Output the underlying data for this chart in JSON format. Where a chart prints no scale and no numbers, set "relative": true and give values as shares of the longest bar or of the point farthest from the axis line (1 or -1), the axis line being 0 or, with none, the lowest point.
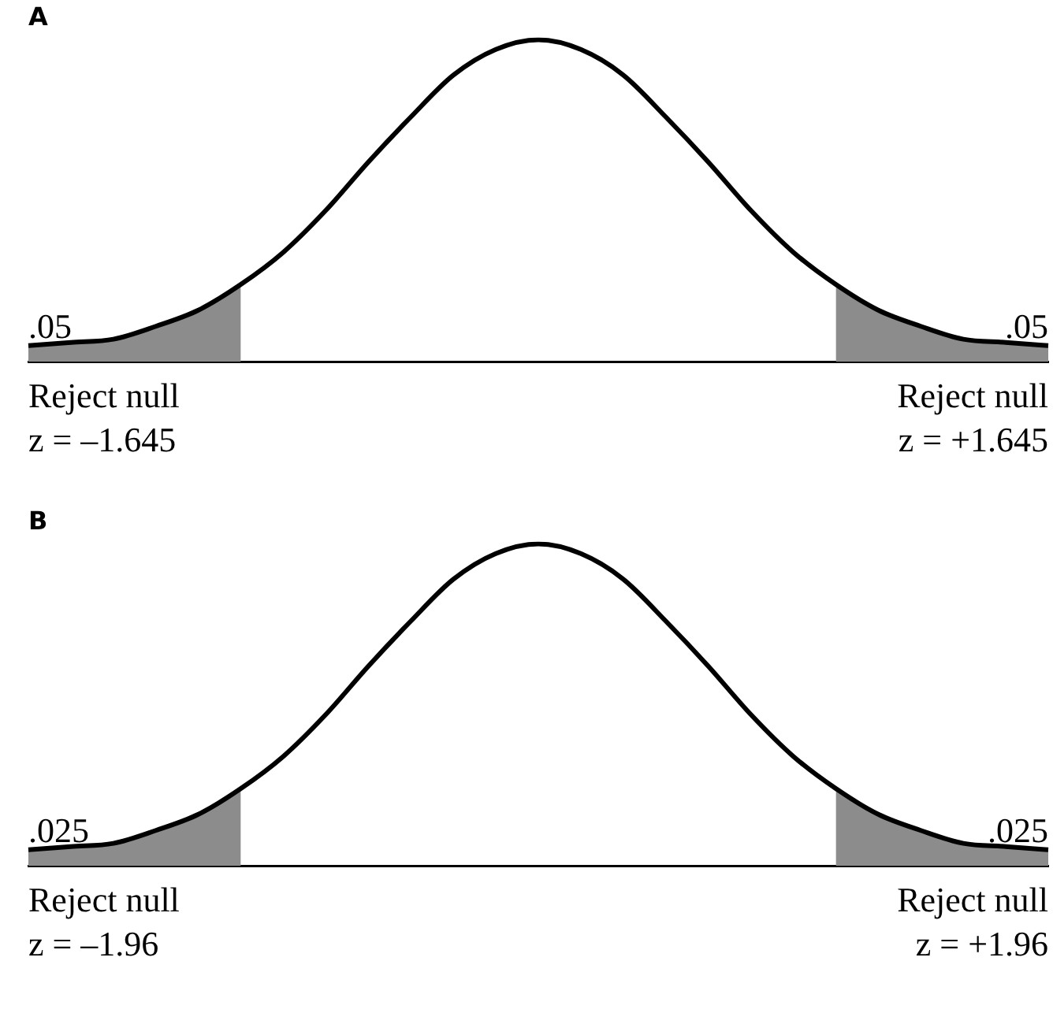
{
  "chart_data": [
    {
      "type": "line",
      "title": "A",
      "relative": true,
      "categories": [
        null,
        null,
        null,
        null,
        null,
        null,
        null,
        null,
        null,
        null,
        null,
        null,
        null,
        null,
        null,
        null,
        null,
        null,
        null,
        null,
        null,
        null,
        null,
        null,
        null
      ],
      "series": [
        {
          "color": "#000000",
          "values": [
            0.05,
            0.06,
            0.07,
            0.11,
            0.16,
            0.24,
            0.34,
            0.47,
            0.62,
            0.76,
            0.89,
            0.97,
            1.0,
            0.97,
            0.89,
            0.76,
            0.62,
            0.47,
            0.34,
            0.24,
            0.16,
            0.11,
            0.07,
            0.06,
            0.05
          ]
        },
        {
          "type": "area",
          "color": "#8c8c8c",
          "values": [
            0.05,
            0.06,
            0.07,
            0.11,
            0.16,
            0.24,
            null,
            null,
            null,
            null,
            null,
            null,
            null,
            null,
            null,
            null,
            null,
            null,
            null,
            null,
            null,
            null,
            null,
            null,
            null
          ]
        },
        {
          "type": "area",
          "color": "#8c8c8c",
          "values": [
            null,
            null,
            null,
            null,
            null,
            null,
            null,
            null,
            null,
            null,
            null,
            null,
            null,
            null,
            null,
            null,
            null,
            null,
            null,
            0.24,
            0.16,
            0.11,
            0.07,
            0.06,
            0.05
          ]
        }
      ],
      "annotations": [
        ".05",
        ".05",
        "Reject null",
        "Reject null",
        "z = –1.645",
        "z = +1.645"
      ]
    },
    {
      "type": "line",
      "title": "B",
      "relative": true,
      "categories": [
        null,
        null,
        null,
        null,
        null,
        null,
        null,
        null,
        null,
        null,
        null,
        null,
        null,
        null,
        null,
        null,
        null,
        null,
        null,
        null,
        null,
        null,
        null,
        null,
        null
      ],
      "series": [
        {
          "color": "#000000",
          "values": [
            0.05,
            0.06,
            0.07,
            0.11,
            0.16,
            0.24,
            0.34,
            0.47,
            0.62,
            0.76,
            0.89,
            0.97,
            1.0,
            0.97,
            0.89,
            0.76,
            0.62,
            0.47,
            0.34,
            0.24,
            0.16,
            0.11,
            0.07,
            0.06,
            0.05
          ]
        },
        {
          "type": "area",
          "color": "#8c8c8c",
          "values": [
            0.05,
            0.06,
            0.07,
            0.11,
            0.16,
            0.24,
            null,
            null,
            null,
            null,
            null,
            null,
            null,
            null,
            null,
            null,
            null,
            null,
            null,
            null,
            null,
            null,
            null,
            null,
            null
          ]
        },
        {
          "type": "area",
          "color": "#8c8c8c",
          "values": [
            null,
            null,
            null,
            null,
            null,
            null,
            null,
            null,
            null,
            null,
            null,
            null,
            null,
            null,
            null,
            null,
            null,
            null,
            null,
            0.24,
            0.16,
            0.11,
            0.07,
            0.06,
            0.05
          ]
        }
      ],
      "annotations": [
        ".025",
        ".025",
        "Reject null",
        "Reject null",
        "z = –1.96",
        "z = +1.96"
      ]
    }
  ]
}
